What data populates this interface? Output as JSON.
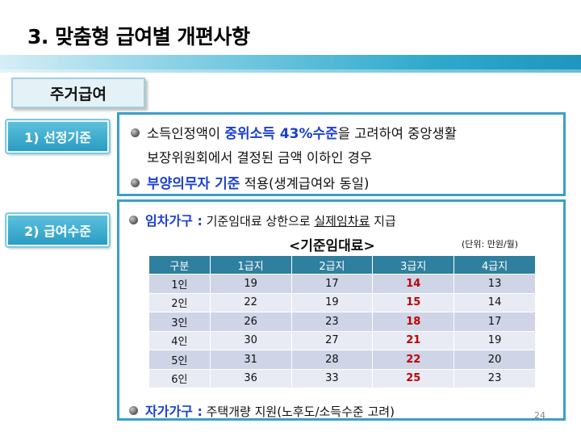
{
  "title": "3. 맞춤형 급여별 개편사항",
  "section_tag": "주거급여",
  "labels": {
    "criteria": "1) 선정기준",
    "level": "2) 급여수준"
  },
  "criteria": {
    "line1_pre": "소득인정액이 ",
    "line1_hl": "중위소득 43%수준",
    "line1_post": "을 고려하여 중앙생활",
    "line2": "보장위원회에서 결정된 금액 이하인 경우",
    "line3_hl": "부양의무자 기준",
    "line3_post": " 적용(생계급여와 동일)"
  },
  "level": {
    "tenant_hl": "임차가구 :",
    "tenant_pre": " 기준임대료 상한으로 ",
    "tenant_u": "실제임차료",
    "tenant_post": " 지급",
    "owner_hl": "자가가구 :",
    "owner_text": " 주택개량 지원(노후도/소득수준 고려)"
  },
  "table": {
    "title": "<기준임대료>",
    "unit": "(단위: 만원/월)",
    "headers": [
      "구분",
      "1급지",
      "2급지",
      "3급지",
      "4급지"
    ],
    "rows": [
      [
        "1인",
        "19",
        "17",
        "14",
        "13"
      ],
      [
        "2인",
        "22",
        "19",
        "15",
        "14"
      ],
      [
        "3인",
        "26",
        "23",
        "18",
        "17"
      ],
      [
        "4인",
        "30",
        "27",
        "21",
        "19"
      ],
      [
        "5인",
        "31",
        "28",
        "22",
        "20"
      ],
      [
        "6인",
        "36",
        "33",
        "25",
        "23"
      ]
    ],
    "highlight_color": "#c00000"
  },
  "page_number": "24"
}
